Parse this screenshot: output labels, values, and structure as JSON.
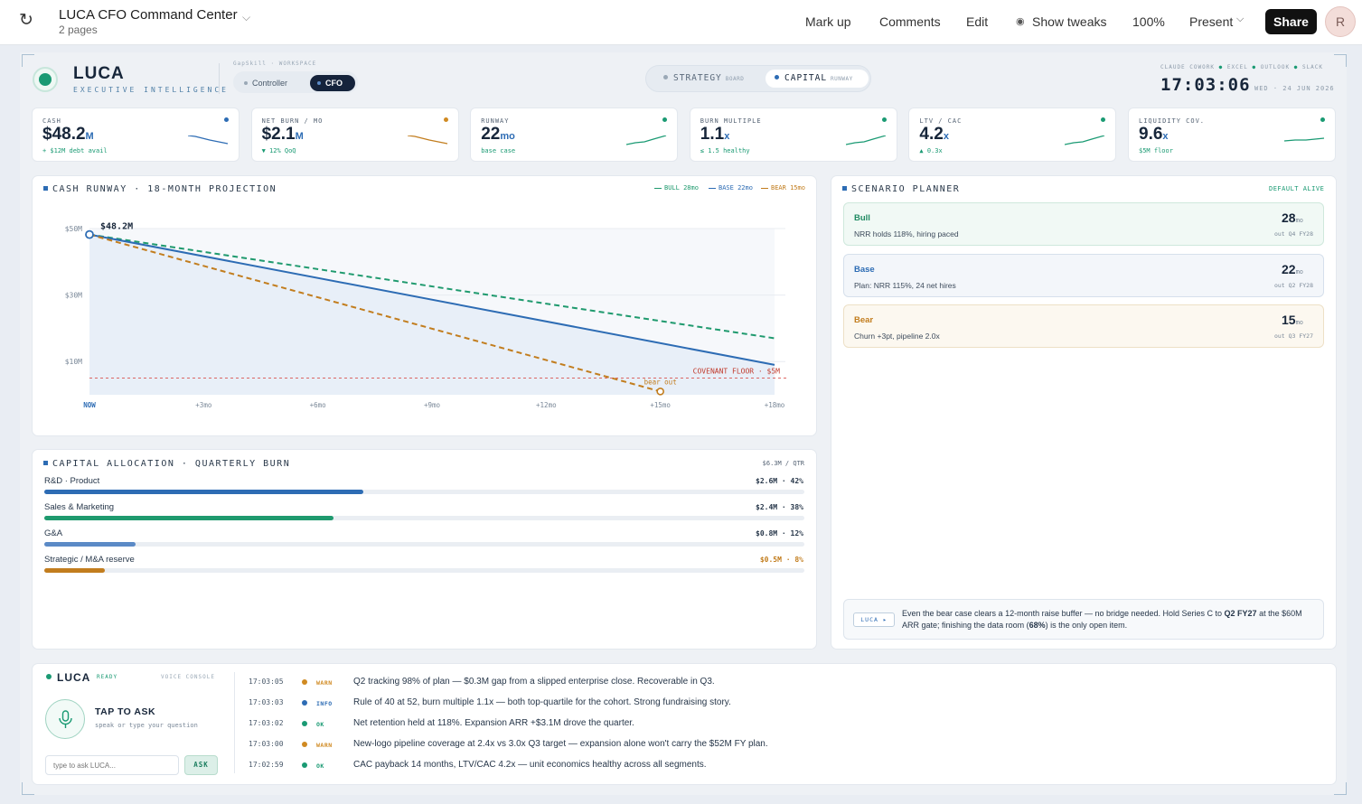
{
  "app": {
    "doc_title": "LUCA CFO Command Center",
    "doc_pages": "2 pages",
    "toolbar": [
      "Mark up",
      "Comments",
      "Edit",
      "Show tweaks",
      "100%",
      "Present"
    ],
    "share_label": "Share",
    "avatar_initial": "R"
  },
  "header": {
    "brand": "LUCA",
    "brand_sub": "EXECUTIVE INTELLIGENCE",
    "workspace_label": "GapSkill · WORKSPACE",
    "roles": [
      "Controller",
      "CFO"
    ],
    "active_role": "CFO",
    "views": [
      {
        "label": "STRATEGY",
        "tag": "BOARD"
      },
      {
        "label": "CAPITAL",
        "tag": "RUNWAY"
      }
    ],
    "integrations": "CLAUDE COWORK",
    "integration_items": [
      "EXCEL",
      "OUTLOOK",
      "SLACK"
    ],
    "clock": "17:03:06",
    "date": "WED · 24 JUN 2026"
  },
  "kpis": [
    {
      "label": "CASH",
      "value": "$48.2",
      "unit": "M",
      "sub": "+ $12M debt avail",
      "sub_color": "#1a9a73",
      "dot": "#2d6cb4",
      "spark": "#2d6cb4",
      "trend": "down"
    },
    {
      "label": "NET BURN / MO",
      "value": "$2.1",
      "unit": "M",
      "sub": "▼ 12% QoQ",
      "sub_color": "#1a9a73",
      "dot": "#d08a22",
      "spark": "#c27d1e",
      "trend": "down"
    },
    {
      "label": "RUNWAY",
      "value": "22",
      "unit": "mo",
      "sub": "base case",
      "sub_color": "#1a9a73",
      "dot": "#1a9a73",
      "spark": "#1a9a73",
      "trend": "up"
    },
    {
      "label": "BURN MULTIPLE",
      "value": "1.1",
      "unit": "x",
      "sub": "≤ 1.5 healthy",
      "sub_color": "#1a9a73",
      "dot": "#1a9a73",
      "spark": "#1a9a73",
      "trend": "up"
    },
    {
      "label": "LTV / CAC",
      "value": "4.2",
      "unit": "x",
      "sub": "▲ 0.3x",
      "sub_color": "#1a9a73",
      "dot": "#1a9a73",
      "spark": "#1a9a73",
      "trend": "up"
    },
    {
      "label": "LIQUIDITY COV.",
      "value": "9.6",
      "unit": "x",
      "sub": "$5M floor",
      "sub_color": "#1a9a73",
      "dot": "#1a9a73",
      "spark": "#1a9a73",
      "trend": "flat"
    }
  ],
  "runway": {
    "title": "CASH RUNWAY · 18-MONTH PROJECTION",
    "legend": [
      {
        "label": "BULL 28mo",
        "color": "#1f9a6e"
      },
      {
        "label": "BASE 22mo",
        "color": "#2d6cb4"
      },
      {
        "label": "BEAR 15mo",
        "color": "#c27d1e"
      }
    ],
    "start_label": "$48.2M",
    "floor_label": "COVENANT FLOOR · $5M",
    "bear_out_label": "bear out"
  },
  "chart_data": {
    "type": "line",
    "title": "CASH RUNWAY · 18-MONTH PROJECTION",
    "x": [
      "NOW",
      "+3mo",
      "+6mo",
      "+9mo",
      "+12mo",
      "+15mo",
      "+18mo"
    ],
    "x_months": [
      0,
      3,
      6,
      9,
      12,
      15,
      18
    ],
    "ylim": [
      0,
      50
    ],
    "y_ticks": [
      "$50M",
      "$30M",
      "$10M"
    ],
    "y_tick_values": [
      50,
      30,
      10
    ],
    "series": [
      {
        "name": "BULL 28mo",
        "color": "#1f9a6e",
        "dashed": true,
        "points": [
          [
            0,
            48.2
          ],
          [
            18,
            17
          ]
        ]
      },
      {
        "name": "BASE 22mo",
        "color": "#2d6cb4",
        "dashed": false,
        "points": [
          [
            0,
            48.2
          ],
          [
            18,
            9
          ]
        ]
      },
      {
        "name": "BEAR 15mo",
        "color": "#c27d1e",
        "dashed": true,
        "points": [
          [
            0,
            48.2
          ],
          [
            15,
            1
          ]
        ]
      }
    ],
    "floor": 5,
    "legend": "top-right"
  },
  "allocation": {
    "title": "CAPITAL ALLOCATION · QUARTERLY BURN",
    "total": "$6.3M / QTR",
    "items": [
      {
        "name": "R&D · Product",
        "value": "$2.6M · 42%",
        "pct": 42,
        "color": "#2d6cb4",
        "val_color": "#27374a"
      },
      {
        "name": "Sales & Marketing",
        "value": "$2.4M · 38%",
        "pct": 38,
        "color": "#1f9a6e",
        "val_color": "#27374a"
      },
      {
        "name": "G&A",
        "value": "$0.8M · 12%",
        "pct": 12,
        "color": "#5b8ac6",
        "val_color": "#27374a"
      },
      {
        "name": "Strategic / M&A reserve",
        "value": "$0.5M · 8%",
        "pct": 8,
        "color": "#c27d1e",
        "val_color": "#c27d1e"
      }
    ]
  },
  "scenarios": {
    "title": "SCENARIO PLANNER",
    "status": "DEFAULT ALIVE",
    "items": [
      {
        "name": "Bull",
        "desc": "NRR holds 118%, hiring paced",
        "value": "28",
        "unit": "mo",
        "out": "out Q4 FY28",
        "color": "#1f8a62",
        "bg": "#f1f9f5",
        "border": "#cfe8dc"
      },
      {
        "name": "Base",
        "desc": "Plan: NRR 115%, 24 net hires",
        "value": "22",
        "unit": "mo",
        "out": "out Q2 FY28",
        "color": "#2d6cb4",
        "bg": "#f3f6fa",
        "border": "#d6e0ec"
      },
      {
        "name": "Bear",
        "desc": "Churn +3pt, pipeline 2.0x",
        "value": "15",
        "unit": "mo",
        "out": "out Q3 FY27",
        "color": "#c27d1e",
        "bg": "#fcf8f0",
        "border": "#ede0c6"
      }
    ],
    "insight_tag": "LUCA ▸",
    "insight_a": "Even the bear case clears a 12-month raise buffer — no bridge needed. Hold Series C to ",
    "insight_b": "Q2 FY27",
    "insight_c": " at the $60M ARR gate; finishing the data room (",
    "insight_d": "68%",
    "insight_e": ") is the only open item."
  },
  "voice": {
    "brand": "LUCA",
    "status": "READY",
    "label": "VOICE CONSOLE",
    "tap": "TAP TO ASK",
    "tap_sub": "speak or type your question",
    "placeholder": "type to ask LUCA...",
    "ask": "ASK",
    "log": [
      {
        "time": "17:03:05",
        "level": "WARN",
        "color": "#d08a22",
        "msg": "Q2 tracking 98% of plan — $0.3M gap from a slipped enterprise close. Recoverable in Q3."
      },
      {
        "time": "17:03:03",
        "level": "INFO",
        "color": "#2d6cb4",
        "msg": "Rule of 40 at 52, burn multiple 1.1x — both top-quartile for the cohort. Strong fundraising story."
      },
      {
        "time": "17:03:02",
        "level": "OK",
        "color": "#1a9a73",
        "msg": "Net retention held at 118%. Expansion ARR +$3.1M drove the quarter."
      },
      {
        "time": "17:03:00",
        "level": "WARN",
        "color": "#d08a22",
        "msg": "New-logo pipeline coverage at 2.4x vs 3.0x Q3 target — expansion alone won't carry the $52M FY plan."
      },
      {
        "time": "17:02:59",
        "level": "OK",
        "color": "#1a9a73",
        "msg": "CAC payback 14 months, LTV/CAC 4.2x — unit economics healthy across all segments."
      }
    ]
  }
}
